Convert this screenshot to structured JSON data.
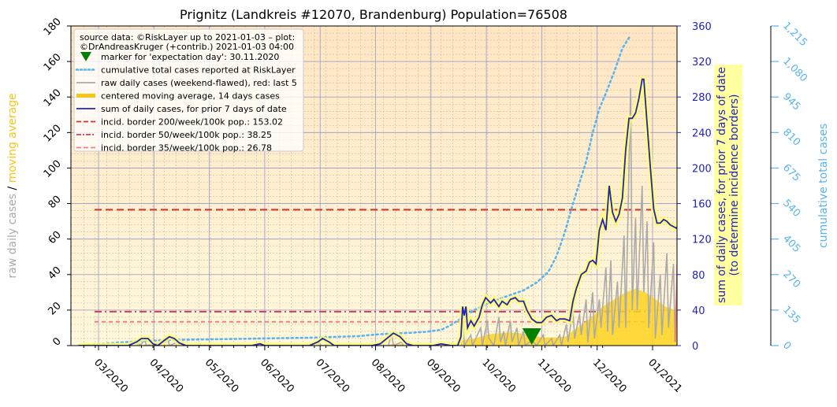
{
  "chart_data": {
    "type": "line",
    "title": "Prignitz (Landkreis #12070, Brandenburg) Population=76508",
    "x_ticks": [
      "03/2020",
      "04/2020",
      "05/2020",
      "06/2020",
      "07/2020",
      "08/2020",
      "09/2020",
      "10/2020",
      "11/2020",
      "12/2020",
      "01/2021"
    ],
    "left_axis": {
      "label_part1": "raw daily cases",
      "label_sep": "/",
      "label_part2": "moving average",
      "ylim": [
        0,
        180
      ],
      "ticks": [
        "0",
        "20",
        "40",
        "60",
        "80",
        "100",
        "120",
        "140",
        "160",
        "180"
      ]
    },
    "right_axis": {
      "label_line1": "sum of daily cases, for prior 7 days of date",
      "label_line2": "(to determine incidence borders)",
      "ylim": [
        0,
        360
      ],
      "ticks": [
        "0",
        "40",
        "80",
        "120",
        "160",
        "200",
        "240",
        "280",
        "320",
        "360"
      ]
    },
    "far_right_axis": {
      "label": "cumulative total cases",
      "ylim": [
        0,
        1215
      ],
      "ticks": [
        "0",
        "135",
        "270",
        "405",
        "540",
        "675",
        "810",
        "945",
        "1,080",
        "1,215"
      ]
    },
    "legend": {
      "placement": "top-left",
      "source_line1": "source data: ©RiskLayer up to 2021-01-03 – plot:",
      "source_line2": "©DrAndreasKruger (+contrib.) 2021-01-03 04:00",
      "entries": [
        {
          "label": "marker for 'expectation day': 30.11.2020",
          "color": "#008000",
          "style": "marker"
        },
        {
          "label": "cumulative total cases reported at RiskLayer",
          "color": "#5ab4f0",
          "style": "dotted"
        },
        {
          "label": "raw daily cases (weekend-flawed), red: last 5",
          "color": "#aaaaaa",
          "style": "solid"
        },
        {
          "label": "centered moving average, 14 days cases",
          "color": "#f5c518",
          "style": "thick"
        },
        {
          "label": "sum of daily cases, for prior 7 days of date",
          "color": "#2222bb",
          "style": "solid"
        },
        {
          "label": "incid. border 200/week/100k pop.: 153.02",
          "color": "#d93030",
          "style": "dashed"
        },
        {
          "label": "incid. border 50/week/100k pop.: 38.25",
          "color": "#d04050",
          "style": "dashdot"
        },
        {
          "label": "incid. border 35/week/100k pop.: 26.78",
          "color": "#f08080",
          "style": "dashed"
        }
      ]
    },
    "incidence_borders": [
      153.02,
      38.25,
      26.78
    ],
    "expectation_day_index": 275,
    "series": [
      {
        "name": "cumulative total cases reported at RiskLayer",
        "axis": "far_right",
        "color": "#5ab4f0",
        "points": [
          [
            0,
            0
          ],
          [
            10,
            5
          ],
          [
            25,
            12
          ],
          [
            40,
            18
          ],
          [
            60,
            22
          ],
          [
            80,
            24
          ],
          [
            100,
            26
          ],
          [
            120,
            28
          ],
          [
            140,
            30
          ],
          [
            160,
            34
          ],
          [
            170,
            36
          ],
          [
            180,
            42
          ],
          [
            190,
            46
          ],
          [
            200,
            48
          ],
          [
            210,
            52
          ],
          [
            220,
            60
          ],
          [
            225,
            75
          ],
          [
            230,
            95
          ],
          [
            240,
            135
          ],
          [
            250,
            165
          ],
          [
            260,
            188
          ],
          [
            270,
            210
          ],
          [
            278,
            240
          ],
          [
            285,
            280
          ],
          [
            290,
            340
          ],
          [
            295,
            430
          ],
          [
            300,
            540
          ],
          [
            305,
            640
          ],
          [
            308,
            700
          ],
          [
            312,
            810
          ],
          [
            316,
            900
          ],
          [
            320,
            960
          ],
          [
            325,
            1040
          ],
          [
            330,
            1130
          ],
          [
            335,
            1180
          ]
        ]
      },
      {
        "name": "sum of daily cases, for prior 7 days of date",
        "axis": "right",
        "color": "#2222bb",
        "points": [
          [
            0,
            0
          ],
          [
            30,
            0
          ],
          [
            35,
            4
          ],
          [
            38,
            8
          ],
          [
            42,
            8
          ],
          [
            45,
            2
          ],
          [
            48,
            0
          ],
          [
            52,
            6
          ],
          [
            55,
            10
          ],
          [
            58,
            8
          ],
          [
            61,
            3
          ],
          [
            65,
            0
          ],
          [
            80,
            0
          ],
          [
            105,
            0
          ],
          [
            110,
            2
          ],
          [
            113,
            0
          ],
          [
            140,
            0
          ],
          [
            145,
            4
          ],
          [
            148,
            8
          ],
          [
            152,
            4
          ],
          [
            155,
            0
          ],
          [
            170,
            0
          ],
          [
            178,
            0
          ],
          [
            183,
            2
          ],
          [
            187,
            8
          ],
          [
            191,
            14
          ],
          [
            195,
            10
          ],
          [
            199,
            2
          ],
          [
            203,
            0
          ],
          [
            215,
            0
          ],
          [
            220,
            2
          ],
          [
            226,
            0
          ],
          [
            230,
            0
          ],
          [
            232,
            10
          ],
          [
            233,
            44
          ],
          [
            234,
            34
          ],
          [
            235,
            44
          ],
          [
            236,
            20
          ],
          [
            238,
            28
          ],
          [
            240,
            22
          ],
          [
            243,
            32
          ],
          [
            245,
            46
          ],
          [
            247,
            54
          ],
          [
            250,
            48
          ],
          [
            252,
            52
          ],
          [
            255,
            44
          ],
          [
            257,
            50
          ],
          [
            260,
            46
          ],
          [
            262,
            52
          ],
          [
            265,
            54
          ],
          [
            267,
            50
          ],
          [
            270,
            50
          ],
          [
            272,
            40
          ],
          [
            275,
            30
          ],
          [
            278,
            26
          ],
          [
            281,
            26
          ],
          [
            284,
            32
          ],
          [
            287,
            34
          ],
          [
            290,
            28
          ],
          [
            292,
            30
          ],
          [
            295,
            30
          ],
          [
            298,
            28
          ],
          [
            300,
            50
          ],
          [
            302,
            64
          ],
          [
            305,
            80
          ],
          [
            308,
            84
          ],
          [
            310,
            94
          ],
          [
            312,
            96
          ],
          [
            314,
            92
          ],
          [
            316,
            130
          ],
          [
            318,
            142
          ],
          [
            320,
            130
          ],
          [
            322,
            180
          ],
          [
            324,
            150
          ],
          [
            326,
            140
          ],
          [
            328,
            148
          ],
          [
            330,
            166
          ],
          [
            332,
            220
          ],
          [
            334,
            256
          ],
          [
            336,
            256
          ],
          [
            338,
            262
          ],
          [
            340,
            278
          ],
          [
            342,
            300
          ],
          [
            343,
            300
          ],
          [
            345,
            250
          ],
          [
            347,
            200
          ],
          [
            349,
            154
          ],
          [
            351,
            138
          ],
          [
            353,
            138
          ],
          [
            355,
            142
          ],
          [
            357,
            140
          ],
          [
            359,
            136
          ],
          [
            361,
            134
          ],
          [
            363,
            132
          ],
          [
            365,
            146
          ],
          [
            367,
            150
          ],
          [
            369,
            148
          ],
          [
            371,
            150
          ],
          [
            373,
            168
          ],
          [
            375,
            178
          ],
          [
            377,
            180
          ]
        ]
      },
      {
        "name": "centered moving average, 14 days cases",
        "axis": "left",
        "color": "#f5c518",
        "points": [
          [
            0,
            0
          ],
          [
            30,
            0
          ],
          [
            40,
            0.6
          ],
          [
            55,
            0.6
          ],
          [
            70,
            0
          ],
          [
            140,
            0
          ],
          [
            150,
            0.6
          ],
          [
            160,
            0
          ],
          [
            185,
            0
          ],
          [
            192,
            1.2
          ],
          [
            200,
            0
          ],
          [
            226,
            0
          ],
          [
            232,
            3
          ],
          [
            240,
            4
          ],
          [
            250,
            6.5
          ],
          [
            260,
            7.4
          ],
          [
            268,
            7
          ],
          [
            275,
            5.5
          ],
          [
            282,
            4.6
          ],
          [
            290,
            4.6
          ],
          [
            296,
            5.2
          ],
          [
            300,
            8.4
          ],
          [
            305,
            11.5
          ],
          [
            310,
            15
          ],
          [
            318,
            22
          ],
          [
            325,
            26
          ],
          [
            332,
            30
          ],
          [
            338,
            32
          ],
          [
            344,
            30
          ],
          [
            350,
            26
          ],
          [
            356,
            22
          ],
          [
            362,
            20
          ],
          [
            368,
            14
          ]
        ]
      },
      {
        "name": "raw daily cases (weekend-flawed), red: last 5",
        "axis": "left",
        "color": "#aaaaaa",
        "points": [
          [
            0,
            0
          ],
          [
            35,
            0
          ],
          [
            36,
            2
          ],
          [
            37,
            0
          ],
          [
            40,
            3
          ],
          [
            41,
            0
          ],
          [
            53,
            2
          ],
          [
            54,
            4
          ],
          [
            55,
            0
          ],
          [
            60,
            2
          ],
          [
            61,
            0
          ],
          [
            145,
            0
          ],
          [
            146,
            2
          ],
          [
            147,
            0
          ],
          [
            188,
            0
          ],
          [
            189,
            4
          ],
          [
            190,
            6
          ],
          [
            191,
            0
          ],
          [
            196,
            2
          ],
          [
            197,
            0
          ],
          [
            232,
            0
          ],
          [
            233,
            22
          ],
          [
            234,
            0
          ],
          [
            238,
            6
          ],
          [
            239,
            0
          ],
          [
            244,
            10
          ],
          [
            245,
            0
          ],
          [
            248,
            14
          ],
          [
            249,
            4
          ],
          [
            252,
            0
          ],
          [
            255,
            16
          ],
          [
            256,
            2
          ],
          [
            258,
            8
          ],
          [
            259,
            0
          ],
          [
            262,
            14
          ],
          [
            263,
            2
          ],
          [
            266,
            10
          ],
          [
            267,
            0
          ],
          [
            270,
            8
          ],
          [
            271,
            0
          ],
          [
            275,
            3
          ],
          [
            278,
            0
          ],
          [
            282,
            6
          ],
          [
            283,
            0
          ],
          [
            287,
            4
          ],
          [
            288,
            0
          ],
          [
            292,
            6
          ],
          [
            293,
            0
          ],
          [
            296,
            12
          ],
          [
            297,
            2
          ],
          [
            300,
            20
          ],
          [
            301,
            4
          ],
          [
            304,
            18
          ],
          [
            305,
            6
          ],
          [
            308,
            26
          ],
          [
            309,
            2
          ],
          [
            312,
            30
          ],
          [
            313,
            4
          ],
          [
            316,
            26
          ],
          [
            317,
            10
          ],
          [
            320,
            44
          ],
          [
            321,
            8
          ],
          [
            323,
            48
          ],
          [
            324,
            6
          ],
          [
            327,
            36
          ],
          [
            328,
            10
          ],
          [
            331,
            62
          ],
          [
            332,
            10
          ],
          [
            335,
            145
          ],
          [
            336,
            20
          ],
          [
            338,
            72
          ],
          [
            339,
            20
          ],
          [
            342,
            90
          ],
          [
            343,
            30
          ],
          [
            345,
            70
          ],
          [
            346,
            10
          ],
          [
            349,
            58
          ],
          [
            350,
            4
          ],
          [
            353,
            40
          ],
          [
            354,
            6
          ],
          [
            357,
            52
          ],
          [
            358,
            10
          ],
          [
            361,
            46
          ],
          [
            362,
            2
          ]
        ]
      },
      {
        "name": "raw daily cases (weekend-flawed), red: last 5",
        "axis": "left",
        "color": "#f08080",
        "points": [
          [
            362,
            2
          ],
          [
            363,
            34
          ],
          [
            364,
            70
          ],
          [
            365,
            36
          ],
          [
            366,
            60
          ],
          [
            367,
            6
          ],
          [
            368,
            8
          ]
        ]
      }
    ]
  }
}
